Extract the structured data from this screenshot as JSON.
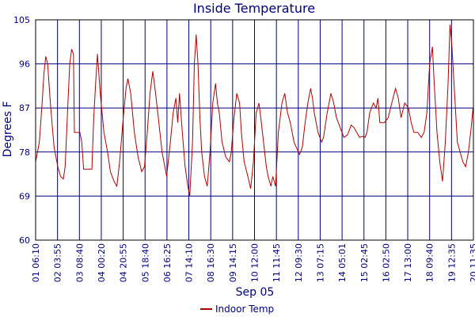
{
  "chart_data": {
    "type": "line",
    "title": "Inside Temperature",
    "xlabel": "Sep 05",
    "ylabel": "Degrees F",
    "ylim": [
      60,
      105
    ],
    "yticks": [
      60,
      69,
      78,
      87,
      96,
      105
    ],
    "xticks": [
      "01 06:10",
      "02 03:55",
      "03 08:40",
      "04 00:20",
      "04 20:55",
      "05 18:40",
      "06 16:25",
      "07 14:10",
      "08 16:30",
      "09 14:15",
      "10 12:00",
      "11 11:45",
      "12 09:30",
      "13 07:15",
      "14 05:01",
      "15 02:45",
      "16 02:50",
      "17 13:00",
      "18 09:40",
      "19 12:35",
      "20 11:35"
    ],
    "grid": true,
    "legend_position": "bottom",
    "series": [
      {
        "name": "Indoor Temp",
        "color": "#b00000",
        "points": [
          [
            0.0,
            76.0
          ],
          [
            0.2,
            80.0
          ],
          [
            0.35,
            88.0
          ],
          [
            0.45,
            94.0
          ],
          [
            0.55,
            97.5
          ],
          [
            0.65,
            96.0
          ],
          [
            0.8,
            88.0
          ],
          [
            1.0,
            79.0
          ],
          [
            1.2,
            75.0
          ],
          [
            1.35,
            73.0
          ],
          [
            1.5,
            72.5
          ],
          [
            1.6,
            75.0
          ],
          [
            1.75,
            88.0
          ],
          [
            1.85,
            96.0
          ],
          [
            1.95,
            99.0
          ],
          [
            2.05,
            98.0
          ],
          [
            2.1,
            82.0
          ],
          [
            2.4,
            82.0
          ],
          [
            2.5,
            80.0
          ],
          [
            2.6,
            74.5
          ],
          [
            3.05,
            74.5
          ],
          [
            3.15,
            85.0
          ],
          [
            3.25,
            92.0
          ],
          [
            3.35,
            98.0
          ],
          [
            3.5,
            90.0
          ],
          [
            3.7,
            82.0
          ],
          [
            3.9,
            78.0
          ],
          [
            4.05,
            74.0
          ],
          [
            4.25,
            72.0
          ],
          [
            4.4,
            71.0
          ],
          [
            4.55,
            76.0
          ],
          [
            4.75,
            85.0
          ],
          [
            4.9,
            91.0
          ],
          [
            5.0,
            93.0
          ],
          [
            5.15,
            90.0
          ],
          [
            5.35,
            82.0
          ],
          [
            5.55,
            77.0
          ],
          [
            5.75,
            74.0
          ],
          [
            5.9,
            75.0
          ],
          [
            6.05,
            82.0
          ],
          [
            6.2,
            90.0
          ],
          [
            6.35,
            94.5
          ],
          [
            6.5,
            90.0
          ],
          [
            6.65,
            85.0
          ],
          [
            6.85,
            78.0
          ],
          [
            7.0,
            75.0
          ],
          [
            7.1,
            73.0
          ],
          [
            7.3,
            80.0
          ],
          [
            7.45,
            86.0
          ],
          [
            7.6,
            89.0
          ],
          [
            7.7,
            84.0
          ],
          [
            7.8,
            90.0
          ],
          [
            7.95,
            82.0
          ],
          [
            8.1,
            75.0
          ],
          [
            8.25,
            71.0
          ],
          [
            8.35,
            69.0
          ],
          [
            8.5,
            80.0
          ],
          [
            8.6,
            96.0
          ],
          [
            8.7,
            102.0
          ],
          [
            8.8,
            96.0
          ],
          [
            8.9,
            85.0
          ],
          [
            9.0,
            78.0
          ],
          [
            9.15,
            73.0
          ],
          [
            9.3,
            71.0
          ],
          [
            9.45,
            78.0
          ],
          [
            9.6,
            88.0
          ],
          [
            9.75,
            92.0
          ],
          [
            9.85,
            88.0
          ],
          [
            9.95,
            86.0
          ],
          [
            10.1,
            80.0
          ],
          [
            10.3,
            77.0
          ],
          [
            10.5,
            76.0
          ],
          [
            10.6,
            78.0
          ],
          [
            10.75,
            85.0
          ],
          [
            10.9,
            90.0
          ],
          [
            11.05,
            88.0
          ],
          [
            11.15,
            82.0
          ],
          [
            11.3,
            76.0
          ],
          [
            11.5,
            73.0
          ],
          [
            11.65,
            70.5
          ],
          [
            11.8,
            76.0
          ],
          [
            11.95,
            86.0
          ],
          [
            12.1,
            88.0
          ],
          [
            12.2,
            85.0
          ],
          [
            12.35,
            80.0
          ],
          [
            12.5,
            75.0
          ],
          [
            12.6,
            73.0
          ],
          [
            12.75,
            71.0
          ],
          [
            12.85,
            73.0
          ],
          [
            13.0,
            71.0
          ],
          [
            13.15,
            82.0
          ],
          [
            13.35,
            88.0
          ],
          [
            13.5,
            90.0
          ],
          [
            13.65,
            86.0
          ],
          [
            13.8,
            84.0
          ],
          [
            14.0,
            80.0
          ],
          [
            14.3,
            77.5
          ],
          [
            14.45,
            79.0
          ],
          [
            14.6,
            84.0
          ],
          [
            14.75,
            88.0
          ],
          [
            14.9,
            91.0
          ],
          [
            15.0,
            89.0
          ],
          [
            15.1,
            86.0
          ],
          [
            15.3,
            82.0
          ],
          [
            15.5,
            80.0
          ],
          [
            15.6,
            81.0
          ],
          [
            15.8,
            86.0
          ],
          [
            16.0,
            90.0
          ],
          [
            16.15,
            88.0
          ],
          [
            16.3,
            85.0
          ],
          [
            16.5,
            83.0
          ],
          [
            16.7,
            81.0
          ],
          [
            16.9,
            81.5
          ],
          [
            17.1,
            83.5
          ],
          [
            17.25,
            83.0
          ],
          [
            17.4,
            82.0
          ],
          [
            17.55,
            81.0
          ],
          [
            17.7,
            81.2
          ],
          [
            17.85,
            81.0
          ],
          [
            17.95,
            82.0
          ],
          [
            18.1,
            86.0
          ],
          [
            18.3,
            88.0
          ],
          [
            18.45,
            87.0
          ],
          [
            18.55,
            89.0
          ],
          [
            18.65,
            84.0
          ],
          [
            18.9,
            84.0
          ],
          [
            19.1,
            85.0
          ],
          [
            19.3,
            88.0
          ],
          [
            19.5,
            91.0
          ],
          [
            19.65,
            89.0
          ],
          [
            19.8,
            85.0
          ],
          [
            20.0,
            88.0
          ],
          [
            20.2,
            87.0
          ],
          [
            20.35,
            84.0
          ],
          [
            20.5,
            82.0
          ],
          [
            20.7,
            82.0
          ],
          [
            20.9,
            81.0
          ],
          [
            21.05,
            82.0
          ],
          [
            21.2,
            86.0
          ],
          [
            21.35,
            96.0
          ],
          [
            21.5,
            99.5
          ],
          [
            21.6,
            92.0
          ],
          [
            21.75,
            82.0
          ],
          [
            21.9,
            76.0
          ],
          [
            22.05,
            72.0
          ],
          [
            22.2,
            80.0
          ],
          [
            22.35,
            92.0
          ],
          [
            22.45,
            104.0
          ],
          [
            22.55,
            100.0
          ],
          [
            22.7,
            90.0
          ],
          [
            22.85,
            80.0
          ],
          [
            23.0,
            78.0
          ],
          [
            23.15,
            76.0
          ],
          [
            23.3,
            75.0
          ],
          [
            23.45,
            78.0
          ],
          [
            23.6,
            83.0
          ],
          [
            23.7,
            87.0
          ]
        ]
      }
    ]
  }
}
